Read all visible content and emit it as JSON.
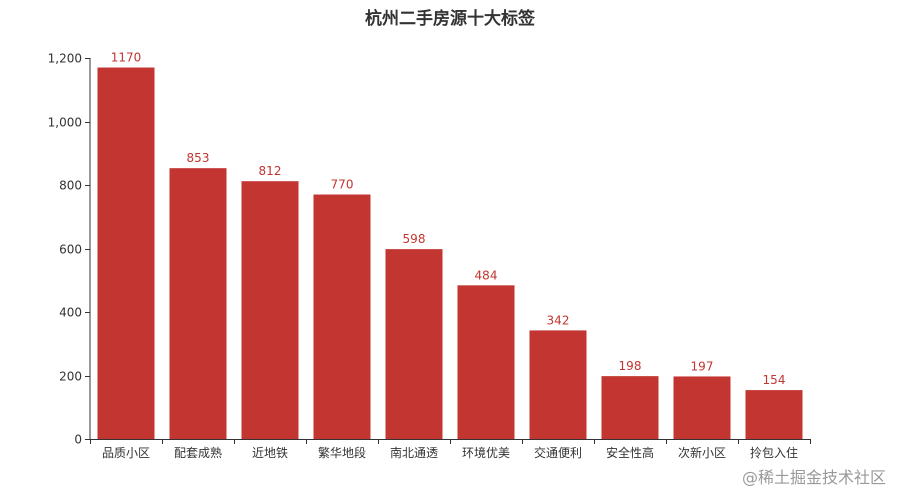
{
  "chart_data": {
    "type": "bar",
    "title": "杭州二手房源十大标签",
    "categories": [
      "品质小区",
      "配套成熟",
      "近地铁",
      "繁华地段",
      "南北通透",
      "环境优美",
      "交通便利",
      "安全性高",
      "次新小区",
      "拎包入住"
    ],
    "values": [
      1170,
      853,
      812,
      770,
      598,
      484,
      342,
      198,
      197,
      154
    ],
    "ylim": [
      0,
      1200
    ],
    "yticks": [
      0,
      200,
      400,
      600,
      800,
      1000,
      1200
    ],
    "ytick_labels": [
      "0",
      "200",
      "400",
      "600",
      "800",
      "1,000",
      "1,200"
    ],
    "xlabel": "",
    "ylabel": "",
    "grid": false,
    "bar_color": "#c23531",
    "label_color": "#c23531",
    "axis_color": "#333333"
  },
  "watermark": "@稀土掘金技术社区"
}
